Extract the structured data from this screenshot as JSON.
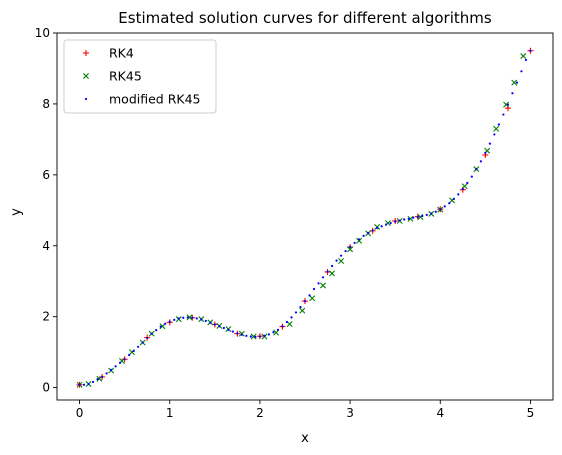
{
  "chart_data": {
    "type": "scatter",
    "title": "Estimated solution curves for different algorithms",
    "xlabel": "x",
    "ylabel": "y",
    "xlim": [
      -0.25,
      5.25
    ],
    "ylim": [
      -0.35,
      10.0
    ],
    "xticks": [
      0,
      1,
      2,
      3,
      4,
      5
    ],
    "yticks": [
      0,
      2,
      4,
      6,
      8,
      10
    ],
    "grid": false,
    "legend_position": "top-left",
    "series": [
      {
        "name": "RK4",
        "marker": "plus",
        "color": "#ff0000",
        "x": [
          0.0,
          0.25,
          0.5,
          0.75,
          1.0,
          1.25,
          1.5,
          1.75,
          2.0,
          2.25,
          2.5,
          2.75,
          3.0,
          3.25,
          3.5,
          3.75,
          4.0,
          4.25,
          4.5,
          4.75,
          5.0
        ],
        "y": [
          0.08,
          0.3,
          0.8,
          1.41,
          1.84,
          1.97,
          1.78,
          1.52,
          1.45,
          1.72,
          2.44,
          3.26,
          3.96,
          4.42,
          4.7,
          4.82,
          5.03,
          5.58,
          6.56,
          7.88,
          9.5
        ]
      },
      {
        "name": "RK45",
        "marker": "x",
        "color": "#008000",
        "x": [
          0.0,
          0.1,
          0.22,
          0.35,
          0.47,
          0.58,
          0.7,
          0.8,
          0.92,
          1.1,
          1.22,
          1.35,
          1.45,
          1.55,
          1.65,
          1.8,
          1.93,
          2.05,
          2.18,
          2.33,
          2.47,
          2.58,
          2.7,
          2.8,
          2.9,
          3.0,
          3.1,
          3.2,
          3.3,
          3.42,
          3.55,
          3.67,
          3.78,
          3.9,
          4.0,
          4.13,
          4.27,
          4.4,
          4.52,
          4.62,
          4.73,
          4.82,
          4.92
        ],
        "y": [
          0.08,
          0.1,
          0.25,
          0.48,
          0.75,
          1.0,
          1.27,
          1.52,
          1.73,
          1.93,
          1.98,
          1.93,
          1.84,
          1.74,
          1.65,
          1.52,
          1.44,
          1.44,
          1.55,
          1.79,
          2.17,
          2.52,
          2.88,
          3.22,
          3.57,
          3.9,
          4.14,
          4.35,
          4.53,
          4.64,
          4.7,
          4.76,
          4.81,
          4.9,
          5.02,
          5.28,
          5.68,
          6.16,
          6.68,
          7.3,
          7.98,
          8.6,
          9.35
        ]
      },
      {
        "name": "modified RK45",
        "marker": "dot",
        "color": "#0000ff",
        "x": [
          0.0,
          0.05,
          0.1,
          0.15,
          0.2,
          0.25,
          0.3,
          0.35,
          0.4,
          0.45,
          0.5,
          0.55,
          0.6,
          0.65,
          0.7,
          0.75,
          0.8,
          0.85,
          0.9,
          0.95,
          1.0,
          1.05,
          1.1,
          1.15,
          1.2,
          1.25,
          1.3,
          1.35,
          1.4,
          1.45,
          1.5,
          1.55,
          1.6,
          1.65,
          1.7,
          1.75,
          1.8,
          1.85,
          1.9,
          1.95,
          2.0,
          2.05,
          2.1,
          2.15,
          2.2,
          2.25,
          2.3,
          2.35,
          2.4,
          2.45,
          2.5,
          2.55,
          2.6,
          2.65,
          2.7,
          2.75,
          2.8,
          2.85,
          2.9,
          2.95,
          3.0,
          3.05,
          3.1,
          3.15,
          3.2,
          3.25,
          3.3,
          3.35,
          3.4,
          3.45,
          3.5,
          3.55,
          3.6,
          3.65,
          3.7,
          3.75,
          3.8,
          3.85,
          3.9,
          3.95,
          4.0,
          4.05,
          4.1,
          4.15,
          4.2,
          4.25,
          4.3,
          4.35,
          4.4,
          4.45,
          4.5,
          4.55,
          4.6,
          4.65,
          4.7,
          4.75,
          4.8,
          4.85,
          4.9,
          4.95,
          5.0
        ],
        "y": [
          0.08,
          0.08,
          0.1,
          0.16,
          0.24,
          0.3,
          0.4,
          0.5,
          0.6,
          0.7,
          0.8,
          0.92,
          1.03,
          1.15,
          1.27,
          1.4,
          1.52,
          1.62,
          1.72,
          1.8,
          1.86,
          1.91,
          1.95,
          1.97,
          1.98,
          1.97,
          1.95,
          1.92,
          1.88,
          1.83,
          1.78,
          1.73,
          1.68,
          1.63,
          1.58,
          1.53,
          1.49,
          1.46,
          1.44,
          1.43,
          1.44,
          1.46,
          1.5,
          1.56,
          1.63,
          1.73,
          1.85,
          1.98,
          2.12,
          2.27,
          2.44,
          2.6,
          2.78,
          2.94,
          3.11,
          3.27,
          3.43,
          3.58,
          3.72,
          3.85,
          3.97,
          4.08,
          4.18,
          4.28,
          4.36,
          4.43,
          4.5,
          4.55,
          4.6,
          4.64,
          4.68,
          4.71,
          4.74,
          4.76,
          4.79,
          4.81,
          4.84,
          4.87,
          4.91,
          4.96,
          5.03,
          5.11,
          5.2,
          5.32,
          5.45,
          5.6,
          5.77,
          5.95,
          6.16,
          6.38,
          6.62,
          6.88,
          7.14,
          7.42,
          7.7,
          7.98,
          8.3,
          8.6,
          8.92,
          9.24,
          9.5
        ]
      }
    ]
  }
}
